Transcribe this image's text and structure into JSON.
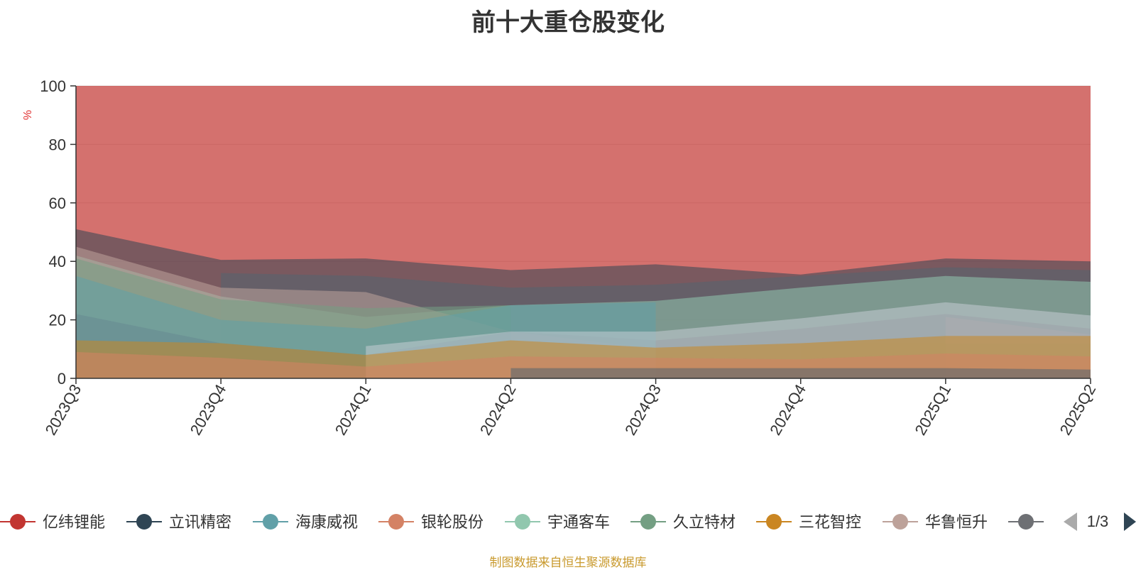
{
  "title": "前十大重仓股变化",
  "source_note": "制图数据来自恒生聚源数据库",
  "legend_page": "1/3",
  "chart_data": {
    "type": "area",
    "stacked": false,
    "title": "前十大重仓股变化",
    "ylabel": "%",
    "ylim": [
      0,
      100
    ],
    "y_ticks": [
      "0",
      "20",
      "40",
      "60",
      "80",
      "100"
    ],
    "categories": [
      "2023Q3",
      "2023Q4",
      "2024Q1",
      "2024Q2",
      "2024Q3",
      "2024Q4",
      "2025Q1",
      "2025Q2"
    ],
    "grid": true,
    "legend_position": "bottom",
    "series": [
      {
        "name": "亿纬锂能",
        "color": "#c23531",
        "values": [
          100,
          100,
          100,
          100,
          100,
          100,
          100,
          100
        ]
      },
      {
        "name": "立讯精密",
        "color": "#2f4554",
        "values": [
          51,
          40.5,
          41,
          37,
          39,
          35.5,
          41,
          40
        ]
      },
      {
        "name": "海康威视",
        "color": "#61a0a8",
        "values": [
          35,
          20,
          17,
          25,
          26,
          null,
          null,
          null
        ]
      },
      {
        "name": "银轮股份",
        "color": "#d48265",
        "values": [
          9,
          7,
          4,
          7.5,
          7,
          6.5,
          8.5,
          7.5
        ]
      },
      {
        "name": "宇通客车",
        "color": "#91c7ae",
        "values": [
          42,
          28,
          21,
          25,
          26.5,
          31,
          35,
          33
        ]
      },
      {
        "name": "久立特材",
        "color": "#749f83",
        "values": [
          41,
          27,
          24,
          25,
          null,
          12,
          12,
          12
        ]
      },
      {
        "name": "三花智控",
        "color": "#ca8622",
        "values": [
          13,
          12,
          8,
          13,
          10.5,
          12,
          14.5,
          14.5
        ]
      },
      {
        "name": "华鲁恒升",
        "color": "#bda29a",
        "values": [
          45,
          31,
          29.5,
          16,
          10,
          null,
          21,
          15
        ]
      },
      {
        "name": "",
        "color": "#6e7074",
        "values": [
          22,
          12,
          8,
          16,
          13,
          17,
          22,
          17
        ]
      }
    ],
    "extra_areas": [
      {
        "color": "#546570",
        "values": [
          null,
          36,
          35,
          31,
          32,
          35,
          38,
          37
        ]
      },
      {
        "color": "#c4ccd3",
        "values": [
          null,
          null,
          11,
          16,
          16,
          20.5,
          26,
          21.5
        ]
      },
      {
        "color": "#546570",
        "values": [
          null,
          null,
          null,
          3.5,
          3.5,
          3.5,
          3.5,
          3
        ]
      }
    ]
  }
}
